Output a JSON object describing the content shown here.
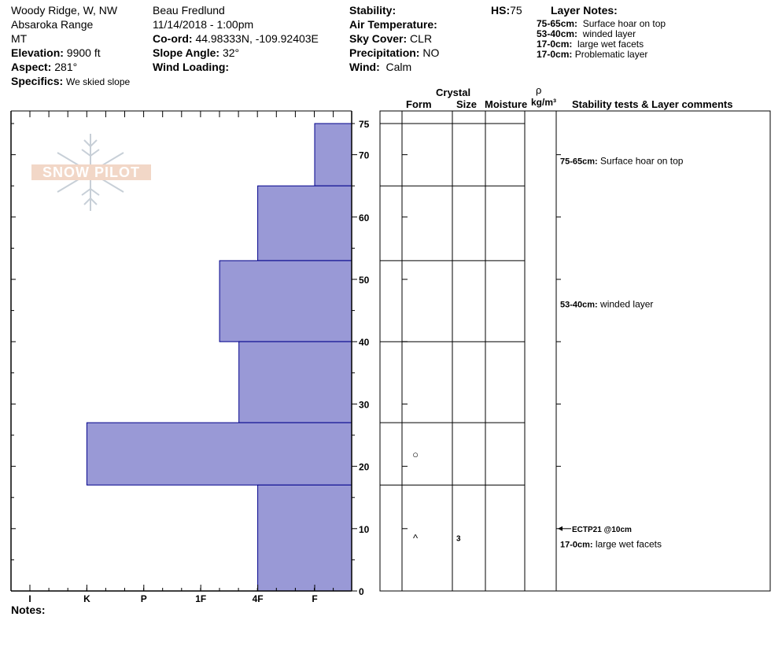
{
  "header": {
    "location": "Woody Ridge, W, NW",
    "range": "Absaroka Range",
    "state": "MT",
    "elevation_label": "Elevation:",
    "elevation_value": "9900 ft",
    "aspect_label": "Aspect:",
    "aspect_value": "281°",
    "specifics_label": "Specifics:",
    "specifics_value": "We skied slope",
    "observer": "Beau  Fredlund",
    "datetime": "11/14/2018 - 1:00pm",
    "coord_label": "Co-ord:",
    "coord_value": "44.98333N, -109.92403E",
    "slope_label": "Slope Angle:",
    "slope_value": "32°",
    "wind_loading_label": "Wind Loading:",
    "stability_label": "Stability:",
    "air_temp_label": "Air Temperature:",
    "sky_label": "Sky Cover:",
    "sky_value": "CLR",
    "precip_label": "Precipitation:",
    "precip_value": "NO",
    "wind_label": "Wind:",
    "wind_value": "Calm",
    "hs_label": "HS:",
    "hs_value": "75",
    "layer_notes_title": "Layer Notes:",
    "layer_notes": [
      {
        "range": "75-65cm:",
        "text": "Surface hoar on top"
      },
      {
        "range": "53-40cm:",
        "text": "winded layer"
      },
      {
        "range": "17-0cm:",
        "text": "large wet facets"
      },
      {
        "range": "17-0cm:",
        "text": "Problematic layer"
      }
    ]
  },
  "columns": {
    "crystal": "Crystal",
    "form": "Form",
    "size": "Size",
    "moisture": "Moisture",
    "rho": "ρ",
    "density_unit": "kg/m³",
    "comments": "Stability tests & Layer comments"
  },
  "logo_text": "SNOW PILOT",
  "notes_label": "Notes:",
  "chart_data": {
    "type": "bar",
    "orientation": "horizontal",
    "hardness_axis": [
      "I",
      "K",
      "P",
      "1F",
      "4F",
      "F"
    ],
    "depth_axis_ticks": [
      0,
      10,
      20,
      30,
      40,
      50,
      60,
      70,
      75
    ],
    "ylim": [
      0,
      75
    ],
    "layers": [
      {
        "top": 75,
        "bottom": 65,
        "hardness": "F"
      },
      {
        "top": 65,
        "bottom": 53,
        "hardness": "4F"
      },
      {
        "top": 53,
        "bottom": 40,
        "hardness": "1F-"
      },
      {
        "top": 40,
        "bottom": 27,
        "hardness": "4F+"
      },
      {
        "top": 27,
        "bottom": 17,
        "hardness": "K"
      },
      {
        "top": 17,
        "bottom": 0,
        "hardness": "4F"
      }
    ],
    "layer_hardness_position": [
      6,
      5,
      4.33,
      4.67,
      2,
      5
    ],
    "grain_forms": [
      {
        "depth": 22,
        "symbol": "○"
      },
      {
        "depth": 8.5,
        "symbol": "^",
        "size": "3"
      }
    ],
    "comments": [
      {
        "depth": 69,
        "range": "75-65cm:",
        "text": "Surface hoar on top"
      },
      {
        "depth": 46,
        "range": "53-40cm:",
        "text": "winded layer"
      },
      {
        "depth": 10,
        "test": "ECTP21 @10cm"
      },
      {
        "depth": 7.5,
        "range": "17-0cm:",
        "text": "large wet facets"
      }
    ],
    "bar_color": "#9999d6",
    "bar_stroke": "#00008b"
  }
}
